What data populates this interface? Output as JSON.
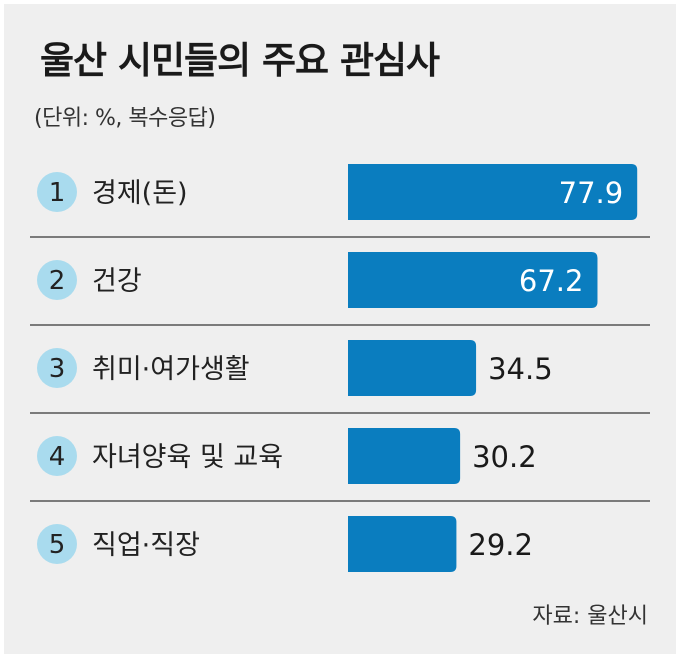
{
  "header": {
    "title": "울산 시민들의 주요 관심사",
    "subtitle": "(단위: %, 복수응답)"
  },
  "footer": {
    "source": "자료: 울산시"
  },
  "colors": {
    "bar": "#0a7dbf",
    "rank_circle": "#a9dbee",
    "separator": "#555555",
    "panel": "#efefef"
  },
  "chart_data": {
    "type": "bar",
    "orientation": "horizontal",
    "ranks": [
      "1",
      "2",
      "3",
      "4",
      "5"
    ],
    "categories": [
      "경제(돈)",
      "건강",
      "취미·여가생활",
      "자녀양육 및 교육",
      "직업·직장"
    ],
    "values": [
      77.9,
      67.2,
      34.5,
      30.2,
      29.2
    ],
    "value_labels": [
      "77.9",
      "67.2",
      "34.5",
      "30.2",
      "29.2"
    ],
    "unit": "%",
    "xlim": [
      0,
      80
    ],
    "grid": false,
    "legend": "none"
  }
}
